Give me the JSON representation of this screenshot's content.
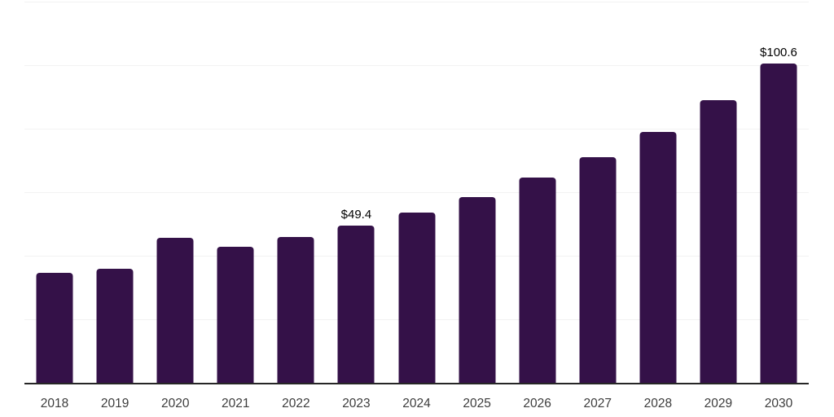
{
  "chart_data": {
    "type": "bar",
    "title": "",
    "xlabel": "",
    "ylabel": "",
    "categories": [
      "2018",
      "2019",
      "2020",
      "2021",
      "2022",
      "2023",
      "2024",
      "2025",
      "2026",
      "2027",
      "2028",
      "2029",
      "2030"
    ],
    "values": [
      34.5,
      36.0,
      45.6,
      42.7,
      46.0,
      49.4,
      53.6,
      58.5,
      64.5,
      71.1,
      79.0,
      88.9,
      100.6
    ],
    "data_labels": {
      "2023": "$49.4",
      "2030": "$100.6"
    },
    "ylim": [
      0,
      120
    ],
    "grid_step": 20,
    "grid": "on",
    "legend": "none",
    "colors": {
      "bar": "#341148",
      "gridline": "#f2f2f2",
      "axis_line": "#262626",
      "tick_label": "#3c3c3c",
      "data_label": "#000000",
      "background": "#ffffff"
    }
  }
}
